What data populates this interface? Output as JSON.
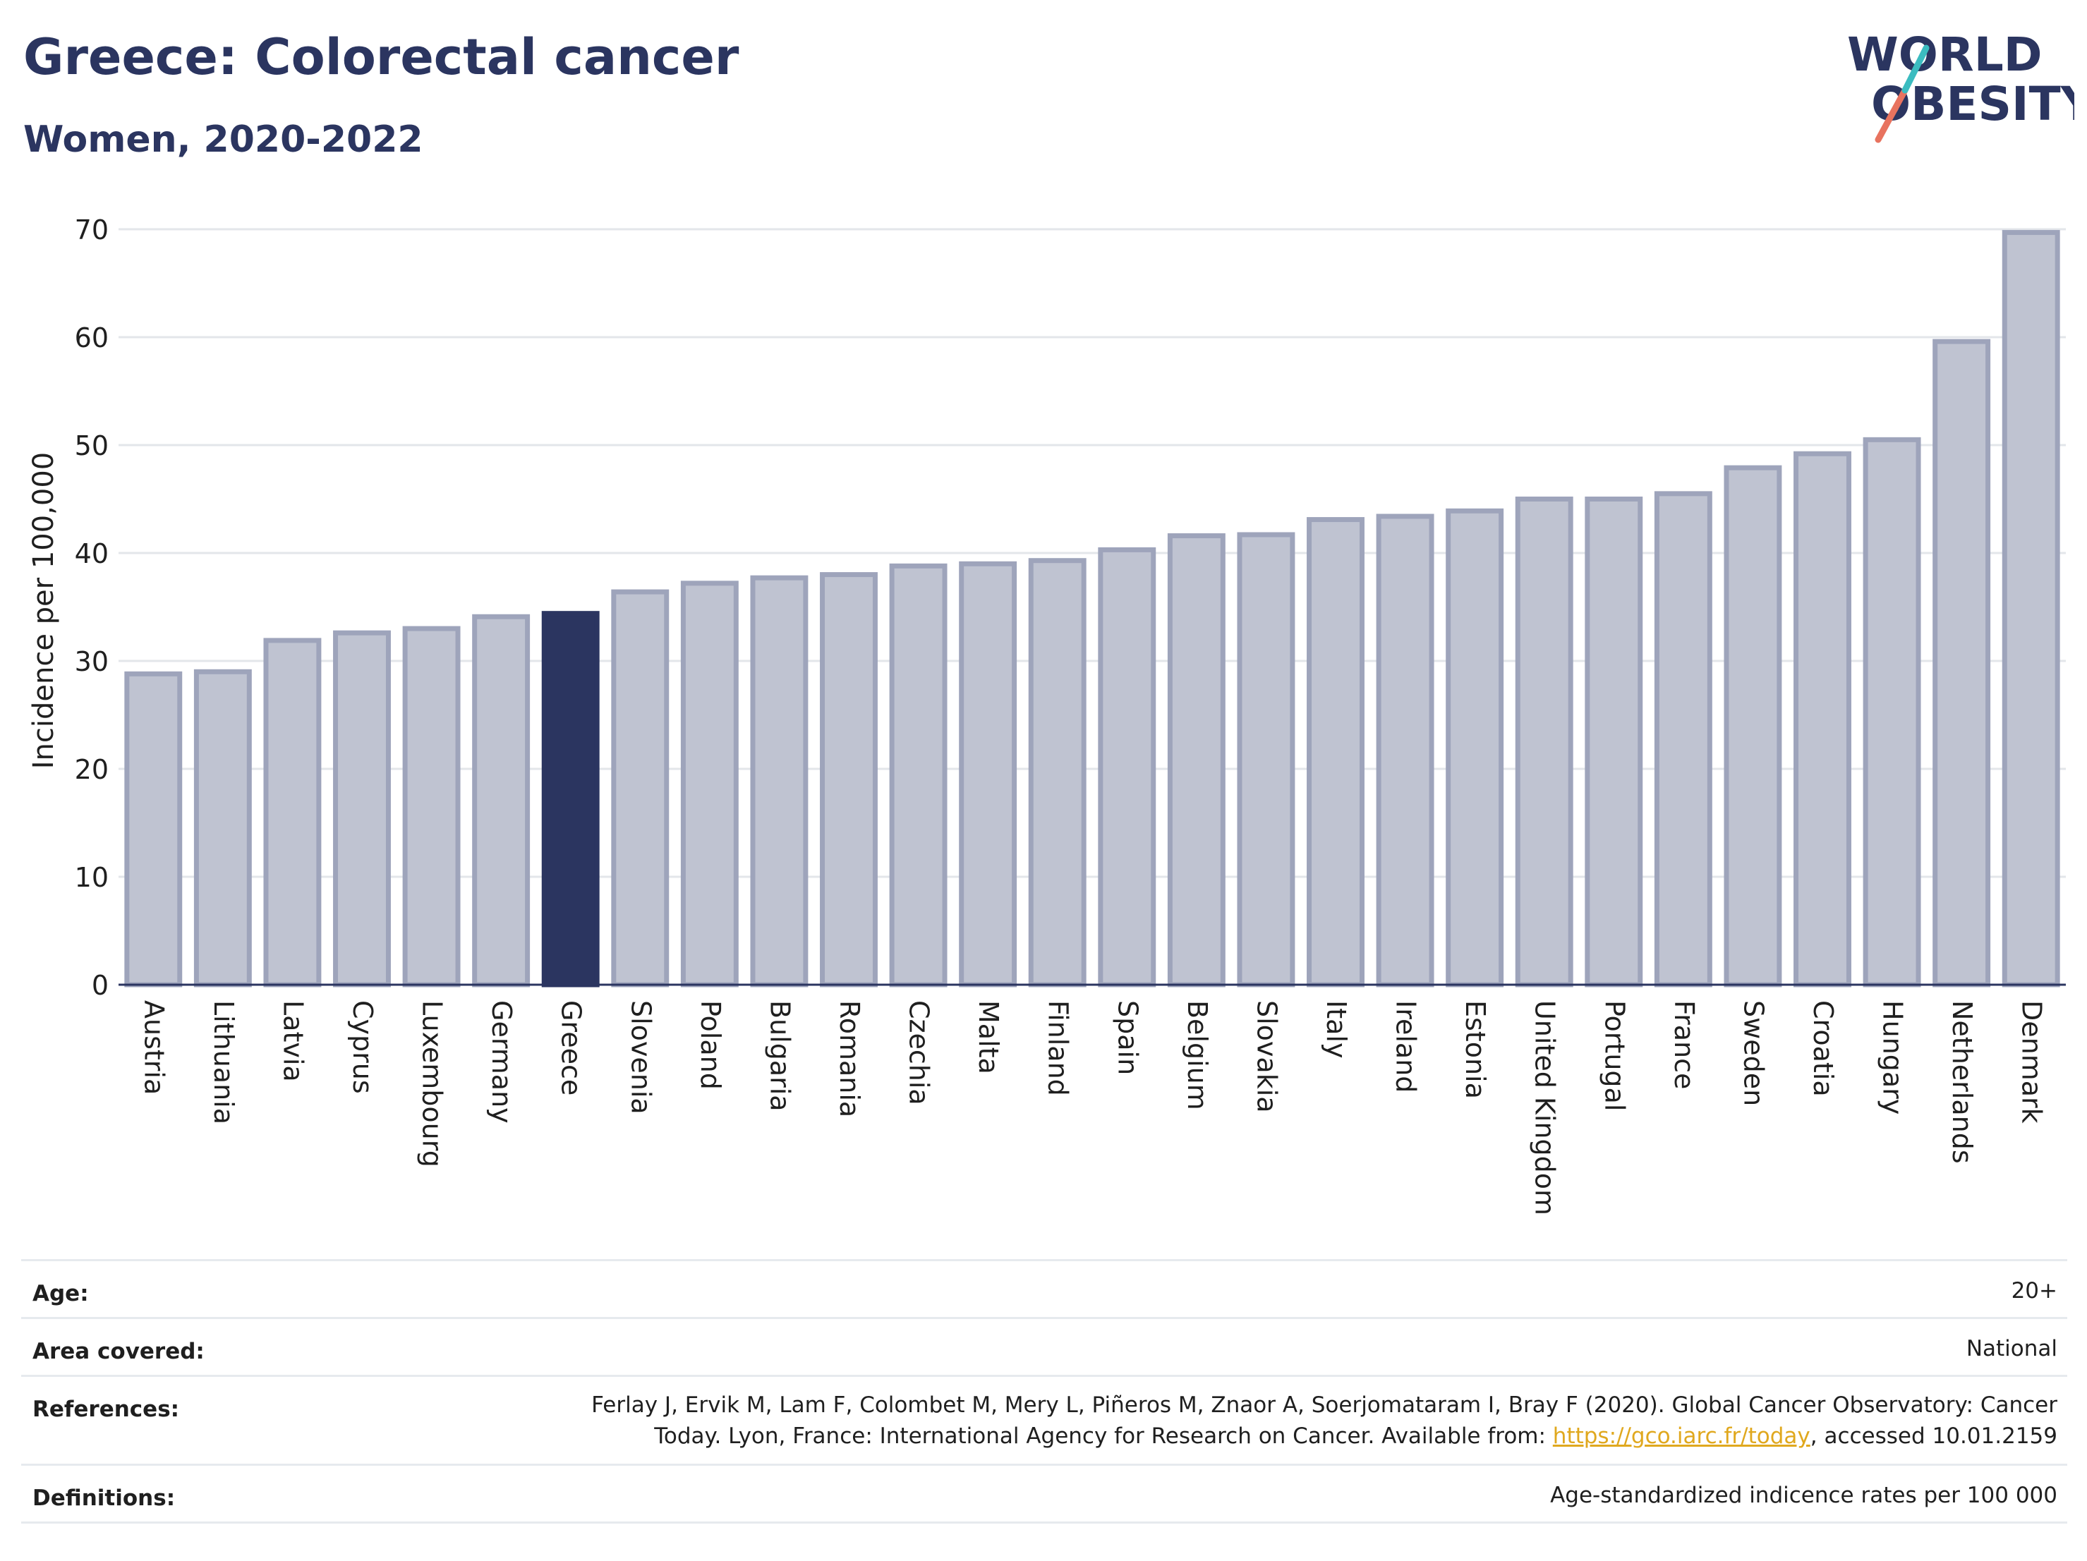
{
  "header": {
    "title": "Greece: Colorectal cancer",
    "subtitle": "Women, 2020-2022"
  },
  "logo": {
    "line1": "WORLD",
    "line2": "OBESITY",
    "colors": {
      "text": "#2b3560",
      "slash_teal": "#3bbcc0",
      "slash_coral": "#e8735f"
    }
  },
  "chart_data": {
    "type": "bar",
    "ylabel": "Incidence per 100,000",
    "xlabel": "",
    "ylim": [
      0,
      70
    ],
    "yticks": [
      0,
      10,
      20,
      30,
      40,
      50,
      60,
      70
    ],
    "grid": true,
    "highlight": "Greece",
    "colors": {
      "bar": "#bfc3d1",
      "bar_border": "#9ea4bb",
      "highlight": "#2b3560",
      "grid": "#e3e6ea"
    },
    "categories": [
      "Austria",
      "Lithuania",
      "Latvia",
      "Cyprus",
      "Luxembourg",
      "Germany",
      "Greece",
      "Slovenia",
      "Poland",
      "Bulgaria",
      "Romania",
      "Czechia",
      "Malta",
      "Finland",
      "Spain",
      "Belgium",
      "Slovakia",
      "Italy",
      "Ireland",
      "Estonia",
      "United Kingdom",
      "Portugal",
      "France",
      "Sweden",
      "Croatia",
      "Hungary",
      "Netherlands",
      "Denmark"
    ],
    "values": [
      28.8,
      29.0,
      31.9,
      32.6,
      33.0,
      34.1,
      34.4,
      36.4,
      37.2,
      37.7,
      38.0,
      38.8,
      39.0,
      39.3,
      40.3,
      41.6,
      41.7,
      43.1,
      43.4,
      43.9,
      45.0,
      45.0,
      45.5,
      47.9,
      49.2,
      50.5,
      59.6,
      69.7
    ]
  },
  "info": {
    "age": {
      "label": "Age:",
      "value": "20+"
    },
    "area": {
      "label": "Area covered:",
      "value": "National"
    },
    "references": {
      "label": "References:",
      "line1": "Ferlay J, Ervik M, Lam F, Colombet M, Mery L, Piñeros M, Znaor A, Soerjomataram I, Bray F (2020). Global Cancer Observatory: Cancer",
      "line2_pre": "Today. Lyon, France: International Agency for Research on Cancer. Available from: ",
      "link": "https://gco.iarc.fr/today",
      "line2_post": ", accessed 10.01.2159"
    },
    "definitions": {
      "label": "Definitions:",
      "value": "Age-standardized indicence rates per 100 000"
    }
  }
}
